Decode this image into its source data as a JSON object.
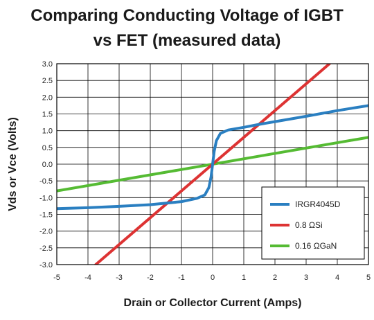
{
  "chart_data": {
    "type": "line",
    "title_line1": "Comparing Conducting Voltage of IGBT",
    "title_line2": "vs FET (measured data)",
    "xlabel": "Drain or Collector Current (Amps)",
    "ylabel": "Vds or Vce (Volts)",
    "xlim": [
      -5,
      5
    ],
    "ylim": [
      -3.0,
      3.0
    ],
    "x_ticks": [
      -5,
      -4,
      -3,
      -2,
      -1,
      0,
      1,
      2,
      3,
      4,
      5
    ],
    "x_tick_labels": [
      "-5",
      "-4",
      "-3",
      "-2",
      "-1",
      "0",
      "1",
      "2",
      "3",
      "4",
      "5"
    ],
    "y_ticks": [
      3.0,
      2.5,
      2.0,
      1.5,
      1.0,
      0.5,
      0.0,
      -0.5,
      -1.0,
      -1.5,
      -2.0,
      -2.5,
      -3.0
    ],
    "y_tick_labels": [
      "3.0",
      "2.5",
      "2.0",
      "1.5",
      "1.0",
      "0.5",
      "0.0",
      "-0.5",
      "-1.0",
      "-1.5",
      "-2.0",
      "-2.5",
      "-3.0"
    ],
    "grid": true,
    "legend_position": "bottom-right",
    "series": [
      {
        "name": "IRGR4045D",
        "color": "#2a7fc1",
        "points": [
          [
            -5,
            -1.33
          ],
          [
            -4,
            -1.3
          ],
          [
            -3,
            -1.26
          ],
          [
            -2,
            -1.21
          ],
          [
            -1,
            -1.12
          ],
          [
            -0.5,
            -1.02
          ],
          [
            -0.25,
            -0.92
          ],
          [
            -0.12,
            -0.7
          ],
          [
            -0.05,
            -0.38
          ],
          [
            0,
            0.0
          ],
          [
            0.05,
            0.38
          ],
          [
            0.12,
            0.7
          ],
          [
            0.25,
            0.92
          ],
          [
            0.5,
            1.02
          ],
          [
            1,
            1.1
          ],
          [
            1.5,
            1.19
          ],
          [
            2,
            1.27
          ],
          [
            3,
            1.43
          ],
          [
            4,
            1.6
          ],
          [
            5,
            1.75
          ]
        ]
      },
      {
        "name": "0.8 ΩSi",
        "color": "#dd3333",
        "points": [
          [
            -3.75,
            -3.0
          ],
          [
            3.75,
            3.0
          ]
        ]
      },
      {
        "name": "0.16 ΩGaN",
        "color": "#55bb33",
        "points": [
          [
            -5,
            -0.8
          ],
          [
            5,
            0.8
          ]
        ]
      }
    ]
  }
}
